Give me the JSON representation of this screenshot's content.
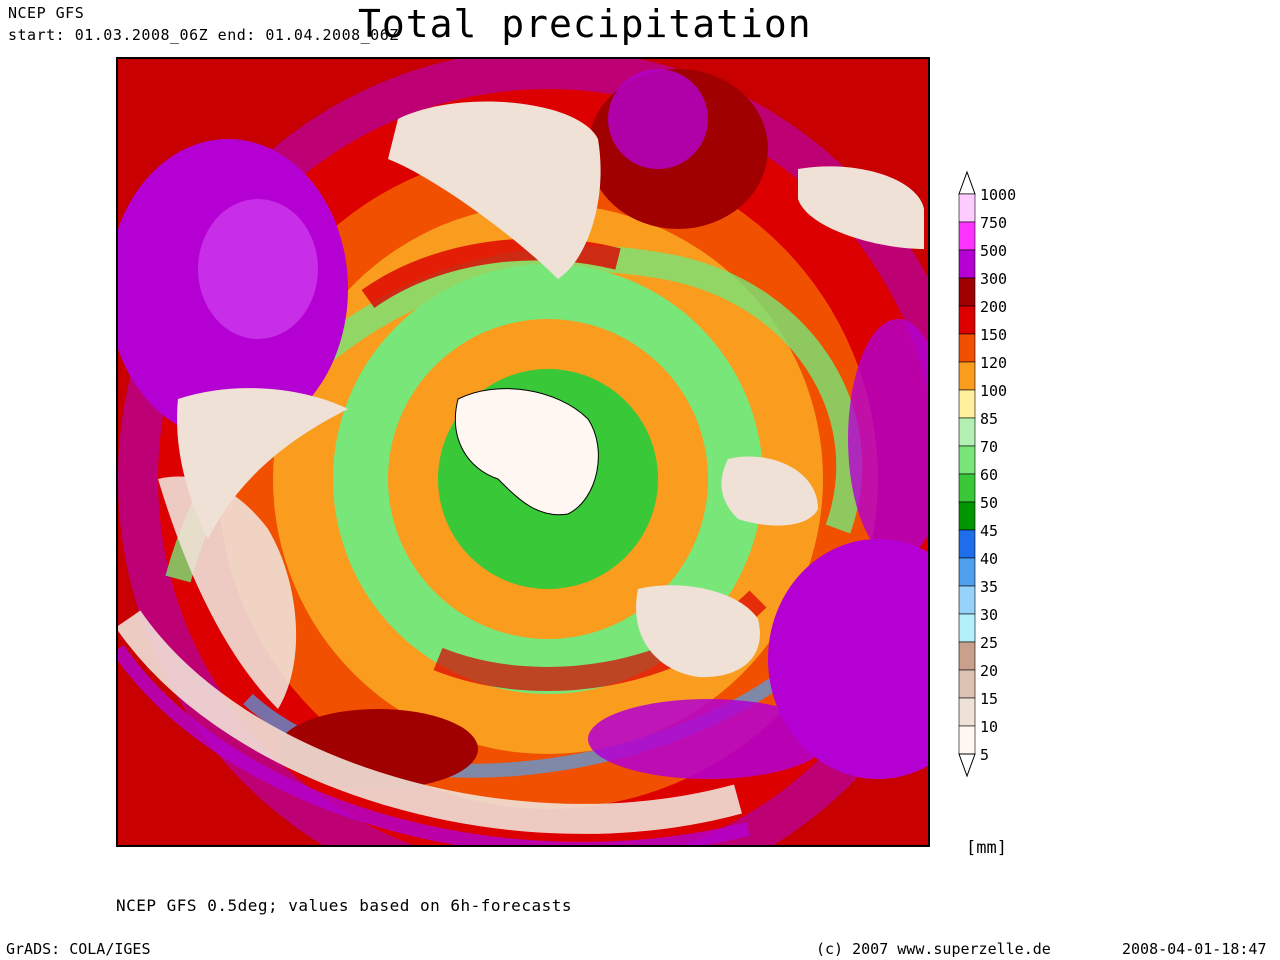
{
  "header": {
    "model": "NCEP GFS",
    "period": "start: 01.03.2008_06Z end: 01.04.2008_06Z",
    "title": "Total precipitation"
  },
  "colorbar": {
    "unit": "[mm]",
    "levels": [
      {
        "label": "1000",
        "color": "#ffccff"
      },
      {
        "label": "750",
        "color": "#ff33ff"
      },
      {
        "label": "500",
        "color": "#b400d2"
      },
      {
        "label": "300",
        "color": "#a00000"
      },
      {
        "label": "200",
        "color": "#dc0000"
      },
      {
        "label": "150",
        "color": "#f05000"
      },
      {
        "label": "120",
        "color": "#fa9c1e"
      },
      {
        "label": "100",
        "color": "#fff0a0"
      },
      {
        "label": "85",
        "color": "#b4f0b4"
      },
      {
        "label": "70",
        "color": "#78e678"
      },
      {
        "label": "60",
        "color": "#38c838"
      },
      {
        "label": "50",
        "color": "#009600"
      },
      {
        "label": "45",
        "color": "#1e6eeb"
      },
      {
        "label": "40",
        "color": "#50a0f0"
      },
      {
        "label": "35",
        "color": "#96d2fa"
      },
      {
        "label": "30",
        "color": "#b4f0fa"
      },
      {
        "label": "25",
        "color": "#c8a08c"
      },
      {
        "label": "20",
        "color": "#dcc3b4"
      },
      {
        "label": "15",
        "color": "#f0e1d7"
      },
      {
        "label": "10",
        "color": "#fff7f2"
      },
      {
        "label": "5",
        "color": ""
      }
    ]
  },
  "footer": {
    "note": "NCEP GFS 0.5deg; values based on 6h-forecasts",
    "software": "GrADS: COLA/IGES",
    "copyright": "(c) 2007 www.superzelle.de",
    "timestamp": "2008-04-01-18:47"
  }
}
